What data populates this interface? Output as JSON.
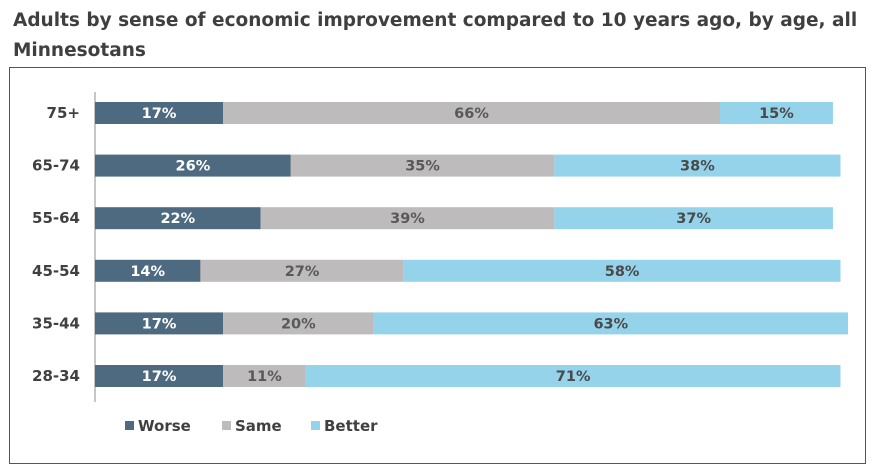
{
  "chart_data": {
    "type": "bar",
    "orientation": "horizontal",
    "stacked": true,
    "title": "Adults by sense of economic improvement compared to 10 years ago, by age, all Minnesotans",
    "categories": [
      "75+",
      "65-74",
      "55-64",
      "45-54",
      "35-44",
      "28-34"
    ],
    "series": [
      {
        "name": "Worse",
        "color": "#4e6a80",
        "label_color": "#ffffff",
        "values": [
          17,
          26,
          22,
          14,
          17,
          17
        ]
      },
      {
        "name": "Same",
        "color": "#bdbbbb",
        "label_color": "#595959",
        "values": [
          66,
          35,
          39,
          27,
          20,
          11
        ]
      },
      {
        "name": "Better",
        "color": "#94d3ea",
        "label_color": "#4a4a4a",
        "values": [
          15,
          38,
          37,
          58,
          63,
          71
        ]
      }
    ],
    "value_suffix": "%",
    "xlim": [
      0,
      100
    ],
    "xlabel": "",
    "ylabel": "",
    "grid": false,
    "legend_position": "bottom-left"
  }
}
